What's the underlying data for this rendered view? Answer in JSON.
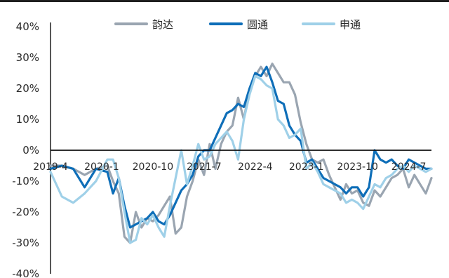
{
  "chart_data": {
    "type": "line",
    "title": "",
    "xlabel": "",
    "ylabel": "",
    "ylim": [
      -40,
      40
    ],
    "y_ticks": [
      "40%",
      "30%",
      "20%",
      "10%",
      "0%",
      "-10%",
      "-20%",
      "-30%",
      "-40%"
    ],
    "x_ticks": [
      "2019-4",
      "2020-1",
      "2020-10",
      "2021-7",
      "2022-4",
      "2023-1",
      "2023-10",
      "2024-7"
    ],
    "x_range": [
      "2019-04",
      "2024-11"
    ],
    "legend_position": "top",
    "grid": false,
    "colors": {
      "yunda": "#9aa5b1",
      "yuantong": "#0e6eb8",
      "shentong": "#9fd0e8"
    },
    "series": [
      {
        "name": "韵达",
        "color": "#9aa5b1",
        "values": [
          [
            "2019-04",
            -5
          ],
          [
            "2019-06",
            -5
          ],
          [
            "2019-08",
            -6
          ],
          [
            "2019-10",
            -8
          ],
          [
            "2019-12",
            -6
          ],
          [
            "2020-02",
            -5
          ],
          [
            "2020-03",
            -10
          ],
          [
            "2020-04",
            -14
          ],
          [
            "2020-05",
            -28
          ],
          [
            "2020-06",
            -30
          ],
          [
            "2020-07",
            -20
          ],
          [
            "2020-08",
            -25
          ],
          [
            "2020-09",
            -22
          ],
          [
            "2020-10",
            -23
          ],
          [
            "2020-11",
            -21
          ],
          [
            "2020-12",
            -18
          ],
          [
            "2021-01",
            -15
          ],
          [
            "2021-02",
            -27
          ],
          [
            "2021-03",
            -25
          ],
          [
            "2021-04",
            -15
          ],
          [
            "2021-05",
            -10
          ],
          [
            "2021-06",
            -3
          ],
          [
            "2021-07",
            -8
          ],
          [
            "2021-08",
            2
          ],
          [
            "2021-09",
            -6
          ],
          [
            "2021-10",
            2
          ],
          [
            "2021-11",
            6
          ],
          [
            "2021-12",
            8
          ],
          [
            "2022-01",
            17
          ],
          [
            "2022-02",
            10
          ],
          [
            "2022-03",
            20
          ],
          [
            "2022-04",
            24
          ],
          [
            "2022-05",
            27
          ],
          [
            "2022-06",
            24
          ],
          [
            "2022-07",
            28
          ],
          [
            "2022-08",
            25
          ],
          [
            "2022-09",
            22
          ],
          [
            "2022-10",
            22
          ],
          [
            "2022-11",
            18
          ],
          [
            "2022-12",
            9
          ],
          [
            "2023-01",
            2
          ],
          [
            "2023-02",
            -3
          ],
          [
            "2023-03",
            -4
          ],
          [
            "2023-04",
            -3
          ],
          [
            "2023-05",
            -8
          ],
          [
            "2023-06",
            -12
          ],
          [
            "2023-07",
            -16
          ],
          [
            "2023-08",
            -11
          ],
          [
            "2023-09",
            -14
          ],
          [
            "2023-10",
            -13
          ],
          [
            "2023-11",
            -17
          ],
          [
            "2023-12",
            -18
          ],
          [
            "2024-01",
            -13
          ],
          [
            "2024-02",
            -15
          ],
          [
            "2024-03",
            -12
          ],
          [
            "2024-04",
            -9
          ],
          [
            "2024-05",
            -8
          ],
          [
            "2024-06",
            -6
          ],
          [
            "2024-07",
            -12
          ],
          [
            "2024-08",
            -8
          ],
          [
            "2024-09",
            -11
          ],
          [
            "2024-10",
            -14
          ],
          [
            "2024-11",
            -9
          ]
        ]
      },
      {
        "name": "圆通",
        "color": "#0e6eb8",
        "values": [
          [
            "2019-04",
            -6
          ],
          [
            "2019-06",
            -5
          ],
          [
            "2019-08",
            -6
          ],
          [
            "2019-10",
            -12
          ],
          [
            "2019-12",
            -6
          ],
          [
            "2020-02",
            -7
          ],
          [
            "2020-03",
            -14
          ],
          [
            "2020-04",
            -9
          ],
          [
            "2020-05",
            -18
          ],
          [
            "2020-06",
            -25
          ],
          [
            "2020-07",
            -24
          ],
          [
            "2020-08",
            -23
          ],
          [
            "2020-09",
            -22
          ],
          [
            "2020-10",
            -20
          ],
          [
            "2020-11",
            -23
          ],
          [
            "2020-12",
            -24
          ],
          [
            "2021-01",
            -21
          ],
          [
            "2021-02",
            -17
          ],
          [
            "2021-03",
            -13
          ],
          [
            "2021-04",
            -11
          ],
          [
            "2021-05",
            -8
          ],
          [
            "2021-06",
            -2
          ],
          [
            "2021-07",
            0
          ],
          [
            "2021-08",
            0
          ],
          [
            "2021-09",
            4
          ],
          [
            "2021-10",
            8
          ],
          [
            "2021-11",
            12
          ],
          [
            "2021-12",
            13
          ],
          [
            "2022-01",
            15
          ],
          [
            "2022-02",
            14
          ],
          [
            "2022-03",
            20
          ],
          [
            "2022-04",
            25
          ],
          [
            "2022-05",
            24
          ],
          [
            "2022-06",
            27
          ],
          [
            "2022-07",
            22
          ],
          [
            "2022-08",
            16
          ],
          [
            "2022-09",
            15
          ],
          [
            "2022-10",
            8
          ],
          [
            "2022-11",
            5
          ],
          [
            "2022-12",
            3
          ],
          [
            "2023-01",
            -4
          ],
          [
            "2023-02",
            -3
          ],
          [
            "2023-03",
            -6
          ],
          [
            "2023-04",
            -9
          ],
          [
            "2023-05",
            -10
          ],
          [
            "2023-06",
            -11
          ],
          [
            "2023-07",
            -12
          ],
          [
            "2023-08",
            -14
          ],
          [
            "2023-09",
            -12
          ],
          [
            "2023-10",
            -12
          ],
          [
            "2023-11",
            -15
          ],
          [
            "2023-12",
            -12
          ],
          [
            "2024-01",
            0
          ],
          [
            "2024-02",
            -3
          ],
          [
            "2024-03",
            -4
          ],
          [
            "2024-04",
            -3
          ],
          [
            "2024-05",
            -5
          ],
          [
            "2024-06",
            -6
          ],
          [
            "2024-07",
            -3
          ],
          [
            "2024-08",
            -4
          ],
          [
            "2024-09",
            -5
          ],
          [
            "2024-10",
            -6
          ],
          [
            "2024-11",
            -6
          ]
        ]
      },
      {
        "name": "申通",
        "color": "#9fd0e8",
        "values": [
          [
            "2019-04",
            -7
          ],
          [
            "2019-06",
            -15
          ],
          [
            "2019-08",
            -17
          ],
          [
            "2019-10",
            -14
          ],
          [
            "2019-12",
            -10
          ],
          [
            "2020-02",
            -3
          ],
          [
            "2020-03",
            -3
          ],
          [
            "2020-04",
            -9
          ],
          [
            "2020-05",
            -20
          ],
          [
            "2020-06",
            -30
          ],
          [
            "2020-07",
            -29
          ],
          [
            "2020-08",
            -22
          ],
          [
            "2020-09",
            -24
          ],
          [
            "2020-10",
            -21
          ],
          [
            "2020-11",
            -25
          ],
          [
            "2020-12",
            -28
          ],
          [
            "2021-01",
            -18
          ],
          [
            "2021-02",
            -9
          ],
          [
            "2021-03",
            0
          ],
          [
            "2021-04",
            -11
          ],
          [
            "2021-05",
            -5
          ],
          [
            "2021-06",
            2
          ],
          [
            "2021-07",
            -3
          ],
          [
            "2021-08",
            -2
          ],
          [
            "2021-09",
            2
          ],
          [
            "2021-10",
            4
          ],
          [
            "2021-11",
            6
          ],
          [
            "2021-12",
            3
          ],
          [
            "2022-01",
            -3
          ],
          [
            "2022-02",
            10
          ],
          [
            "2022-03",
            18
          ],
          [
            "2022-04",
            24
          ],
          [
            "2022-05",
            23
          ],
          [
            "2022-06",
            21
          ],
          [
            "2022-07",
            20
          ],
          [
            "2022-08",
            10
          ],
          [
            "2022-09",
            8
          ],
          [
            "2022-10",
            4
          ],
          [
            "2022-11",
            5
          ],
          [
            "2022-12",
            7
          ],
          [
            "2023-01",
            -6
          ],
          [
            "2023-02",
            -4
          ],
          [
            "2023-03",
            -7
          ],
          [
            "2023-04",
            -11
          ],
          [
            "2023-05",
            -12
          ],
          [
            "2023-06",
            -13
          ],
          [
            "2023-07",
            -14
          ],
          [
            "2023-08",
            -17
          ],
          [
            "2023-09",
            -16
          ],
          [
            "2023-10",
            -17
          ],
          [
            "2023-11",
            -19
          ],
          [
            "2023-12",
            -15
          ],
          [
            "2024-01",
            -11
          ],
          [
            "2024-02",
            -12
          ],
          [
            "2024-03",
            -9
          ],
          [
            "2024-04",
            -8
          ],
          [
            "2024-05",
            -6
          ],
          [
            "2024-06",
            -5
          ],
          [
            "2024-07",
            -7
          ],
          [
            "2024-08",
            -5
          ],
          [
            "2024-09",
            -6
          ],
          [
            "2024-10",
            -7
          ],
          [
            "2024-11",
            -6
          ]
        ]
      }
    ]
  }
}
